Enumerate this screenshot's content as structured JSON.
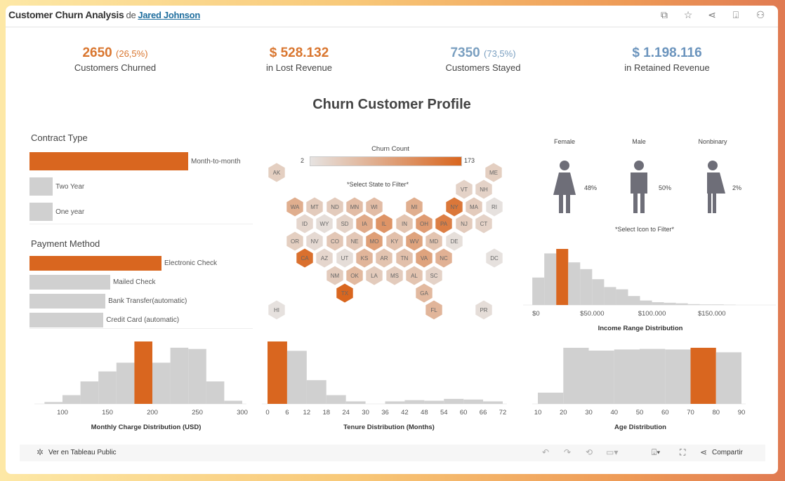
{
  "header": {
    "title": "Customer Churn Analysis",
    "by": "de",
    "author": "Jared Johnson",
    "icons": [
      "duplicate-icon",
      "star-icon",
      "share-icon",
      "download-icon",
      "badge-icon"
    ]
  },
  "kpis": [
    {
      "value": "2650",
      "pct": "(26,5%)",
      "label": "Customers Churned",
      "color": "#d9762f"
    },
    {
      "value": "$ 528.132",
      "pct": "",
      "label": "in Lost Revenue",
      "color": "#d9762f"
    },
    {
      "value": "7350",
      "pct": "(73,5%)",
      "label": "Customers Stayed",
      "color": "#7a9fc0"
    },
    {
      "value": "$ 1.198.116",
      "pct": "",
      "label": "in Retained Revenue",
      "color": "#6b94bd"
    }
  ],
  "section_title": "Churn Customer Profile",
  "colors": {
    "accent": "#d9661f",
    "bar": "#d0d0d0",
    "low": "#e3e1df",
    "figure": "#6e6e78"
  },
  "contract": {
    "title": "Contract Type",
    "items": [
      {
        "label": "Month-to-month",
        "value": 2050,
        "selected": true
      },
      {
        "label": "Two Year",
        "value": 300,
        "selected": false
      },
      {
        "label": "One year",
        "value": 300,
        "selected": false
      }
    ]
  },
  "payment": {
    "title": "Payment Method",
    "items": [
      {
        "label": "Electronic Check",
        "value": 965,
        "selected": true
      },
      {
        "label": "Mailed Check",
        "value": 590,
        "selected": false
      },
      {
        "label": "Bank Transfer(automatic)",
        "value": 555,
        "selected": false
      },
      {
        "label": "Credit Card (automatic)",
        "value": 540,
        "selected": false
      }
    ]
  },
  "map": {
    "legend_title": "Churn Count",
    "min": "2",
    "max": "173",
    "hint": "*Select State to Filter*",
    "states": {
      "TX": 173,
      "CA": 160,
      "NY": 150,
      "PA": 140,
      "IL": 110,
      "OH": 100,
      "MO": 95,
      "WV": 90,
      "VA": 90,
      "IA": 80,
      "WA": 75,
      "MI": 75,
      "NC": 70,
      "KS": 65,
      "FL": 65,
      "OK": 60,
      "GA": 60,
      "MN": 55,
      "WI": 55,
      "TN": 50,
      "KY": 50,
      "IN": 45,
      "MD": 45,
      "AR": 45,
      "AL": 45,
      "NE": 40,
      "CO": 40,
      "MT": 35,
      "ND": 35,
      "MA": 35,
      "NJ": 35,
      "NM": 35,
      "LA": 35,
      "MS": 35,
      "AK": 30,
      "ME": 30,
      "VT": 25,
      "NH": 25,
      "OR": 30,
      "SD": 25,
      "CT": 25,
      "SC": 25,
      "ID": 20,
      "NV": 15,
      "AZ": 20,
      "UT": 10,
      "WY": 10,
      "DE": 8,
      "RI": 5,
      "DC": 5,
      "HI": 5,
      "PR": 10
    }
  },
  "gender": {
    "hint": "*Select Icon to Filter*",
    "items": [
      {
        "label": "Female",
        "pct": "48%",
        "icon": "female-icon"
      },
      {
        "label": "Male",
        "pct": "50%",
        "icon": "male-icon"
      },
      {
        "label": "Nonbinary",
        "pct": "2%",
        "icon": "nonbinary-icon"
      }
    ]
  },
  "chart_data": [
    {
      "type": "bar",
      "title": "",
      "xlabel": "Monthly Charge Distribution (USD)",
      "bin_starts": [
        80,
        100,
        120,
        140,
        160,
        180,
        200,
        220,
        240,
        260,
        280
      ],
      "bin_width": 20,
      "values": [
        3,
        14,
        36,
        52,
        66,
        100,
        66,
        90,
        88,
        36,
        5
      ],
      "highlight_bin": 180,
      "xticks": [
        "100",
        "150",
        "200",
        "250",
        "300"
      ],
      "xlim": [
        75,
        300
      ]
    },
    {
      "type": "bar",
      "title": "",
      "xlabel": "Tenure Distribution (Months)",
      "bin_starts": [
        0,
        6,
        12,
        18,
        24,
        30,
        36,
        42,
        48,
        54,
        60,
        66
      ],
      "bin_width": 6,
      "values": [
        100,
        85,
        38,
        14,
        4,
        0,
        4,
        6,
        5,
        8,
        7,
        4
      ],
      "highlight_bin": 0,
      "xticks": [
        "0",
        "6",
        "12",
        "18",
        "24",
        "30",
        "36",
        "42",
        "48",
        "54",
        "60",
        "66",
        "72"
      ],
      "xlim": [
        0,
        72
      ]
    },
    {
      "type": "bar",
      "title": "",
      "xlabel": "Income Range Distribution",
      "bin_starts": [
        0,
        10000,
        20000,
        30000,
        40000,
        50000,
        60000,
        70000,
        80000,
        90000,
        100000,
        110000,
        120000,
        130000,
        140000,
        150000,
        160000
      ],
      "bin_width": 10000,
      "values": [
        49,
        92,
        100,
        76,
        64,
        46,
        32,
        28,
        16,
        8,
        5,
        4,
        3,
        1.5,
        1,
        1,
        0.5
      ],
      "highlight_bin": 20000,
      "xticks": [
        "$0",
        "$50.000",
        "$100.000",
        "$150.000"
      ],
      "xlim": [
        -3000,
        200000
      ]
    },
    {
      "type": "bar",
      "title": "",
      "xlabel": "Age Distribution",
      "bin_starts": [
        10,
        20,
        30,
        40,
        50,
        60,
        70,
        80
      ],
      "bin_width": 10,
      "values": [
        20,
        100,
        95,
        97,
        98,
        97,
        100,
        92
      ],
      "highlight_bin": 70,
      "xticks": [
        "10",
        "20",
        "30",
        "40",
        "50",
        "60",
        "70",
        "80",
        "90"
      ],
      "xlim": [
        10,
        90
      ]
    }
  ],
  "toolbar": {
    "view_label": "Ver en Tableau Public",
    "share_label": "Compartir"
  }
}
